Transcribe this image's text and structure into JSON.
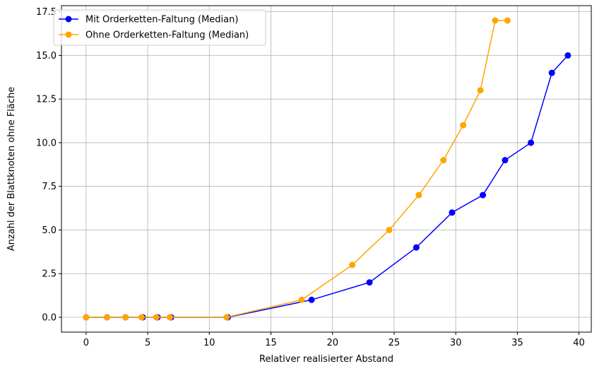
{
  "chart_data": {
    "type": "line",
    "xlabel": "Relativer realisierter Abstand",
    "ylabel": "Anzahl der Blattknoten ohne Fläche",
    "xlim": [
      -2.0,
      41.0
    ],
    "ylim": [
      -0.85,
      17.85
    ],
    "xticks": [
      0,
      5,
      10,
      15,
      20,
      25,
      30,
      35,
      40
    ],
    "xtick_labels": [
      "0",
      "5",
      "10",
      "15",
      "20",
      "25",
      "30",
      "35",
      "40"
    ],
    "yticks": [
      0.0,
      2.5,
      5.0,
      7.5,
      10.0,
      12.5,
      15.0,
      17.5
    ],
    "ytick_labels": [
      "0.0",
      "2.5",
      "5.0",
      "7.5",
      "10.0",
      "12.5",
      "15.0",
      "17.5"
    ],
    "grid": true,
    "legend_position": "upper-left",
    "series": [
      {
        "name": "Mit Orderketten-Faltung (Median)",
        "color": "#0000ff",
        "marker": "circle",
        "x": [
          0,
          1.7,
          3.2,
          4.6,
          5.8,
          6.9,
          11.5,
          18.3,
          23.0,
          26.8,
          29.7,
          32.2,
          34.0,
          36.1,
          37.8,
          39.1
        ],
        "y": [
          0,
          0,
          0,
          0,
          0,
          0,
          0,
          1,
          2,
          4,
          6,
          7,
          9,
          10,
          14,
          15
        ]
      },
      {
        "name": "Ohne Orderketten-Faltung (Median)",
        "color": "#ffa500",
        "marker": "circle",
        "x": [
          0,
          1.7,
          3.2,
          4.5,
          5.7,
          6.8,
          11.4,
          17.5,
          21.6,
          24.6,
          27.0,
          29.0,
          30.6,
          32.0,
          33.2,
          34.2
        ],
        "y": [
          0,
          0,
          0,
          0,
          0,
          0,
          0,
          1,
          3,
          5,
          7,
          9,
          11,
          13,
          17,
          17
        ]
      }
    ]
  }
}
